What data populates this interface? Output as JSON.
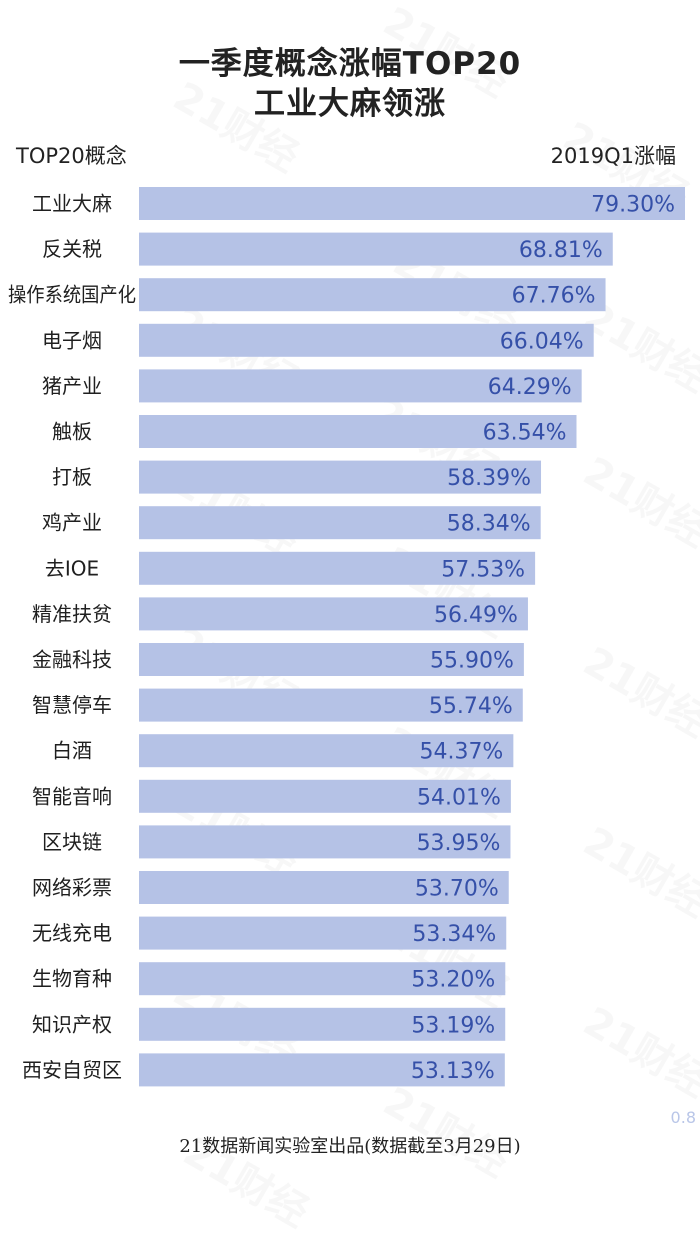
{
  "title": {
    "line1": "一季度概念涨幅TOP20",
    "line2": "工业大麻领涨"
  },
  "headers": {
    "left": "TOP20概念",
    "right": "2019Q1涨幅"
  },
  "footer": "21数据新闻实验室出品(数据截至3月29日)",
  "watermark": "21财经",
  "corner_mark": "0.8",
  "colors": {
    "bar": "#b5c2e6",
    "value_text": "#3550a8"
  },
  "chart_data": {
    "type": "bar",
    "orientation": "horizontal",
    "title": "一季度概念涨幅TOP20 工业大麻领涨",
    "xlabel": "2019Q1涨幅",
    "ylabel": "TOP20概念",
    "categories": [
      "工业大麻",
      "反关税",
      "操作系统国产化",
      "电子烟",
      "猪产业",
      "触板",
      "打板",
      "鸡产业",
      "去IOE",
      "精准扶贫",
      "金融科技",
      "智慧停车",
      "白酒",
      "智能音响",
      "区块链",
      "网络彩票",
      "无线充电",
      "生物育种",
      "知识产权",
      "西安自贸区"
    ],
    "values": [
      79.3,
      68.81,
      67.76,
      66.04,
      64.29,
      63.54,
      58.39,
      58.34,
      57.53,
      56.49,
      55.9,
      55.74,
      54.37,
      54.01,
      53.95,
      53.7,
      53.34,
      53.2,
      53.19,
      53.13
    ],
    "value_labels": [
      "79.30%",
      "68.81%",
      "67.76%",
      "66.04%",
      "64.29%",
      "63.54%",
      "58.39%",
      "58.34%",
      "57.53%",
      "56.49%",
      "55.90%",
      "55.74%",
      "54.37%",
      "54.01%",
      "53.95%",
      "53.70%",
      "53.34%",
      "53.20%",
      "53.19%",
      "53.13%"
    ],
    "unit": "%",
    "xlim": [
      0,
      80
    ],
    "grid": false,
    "legend": "none"
  }
}
